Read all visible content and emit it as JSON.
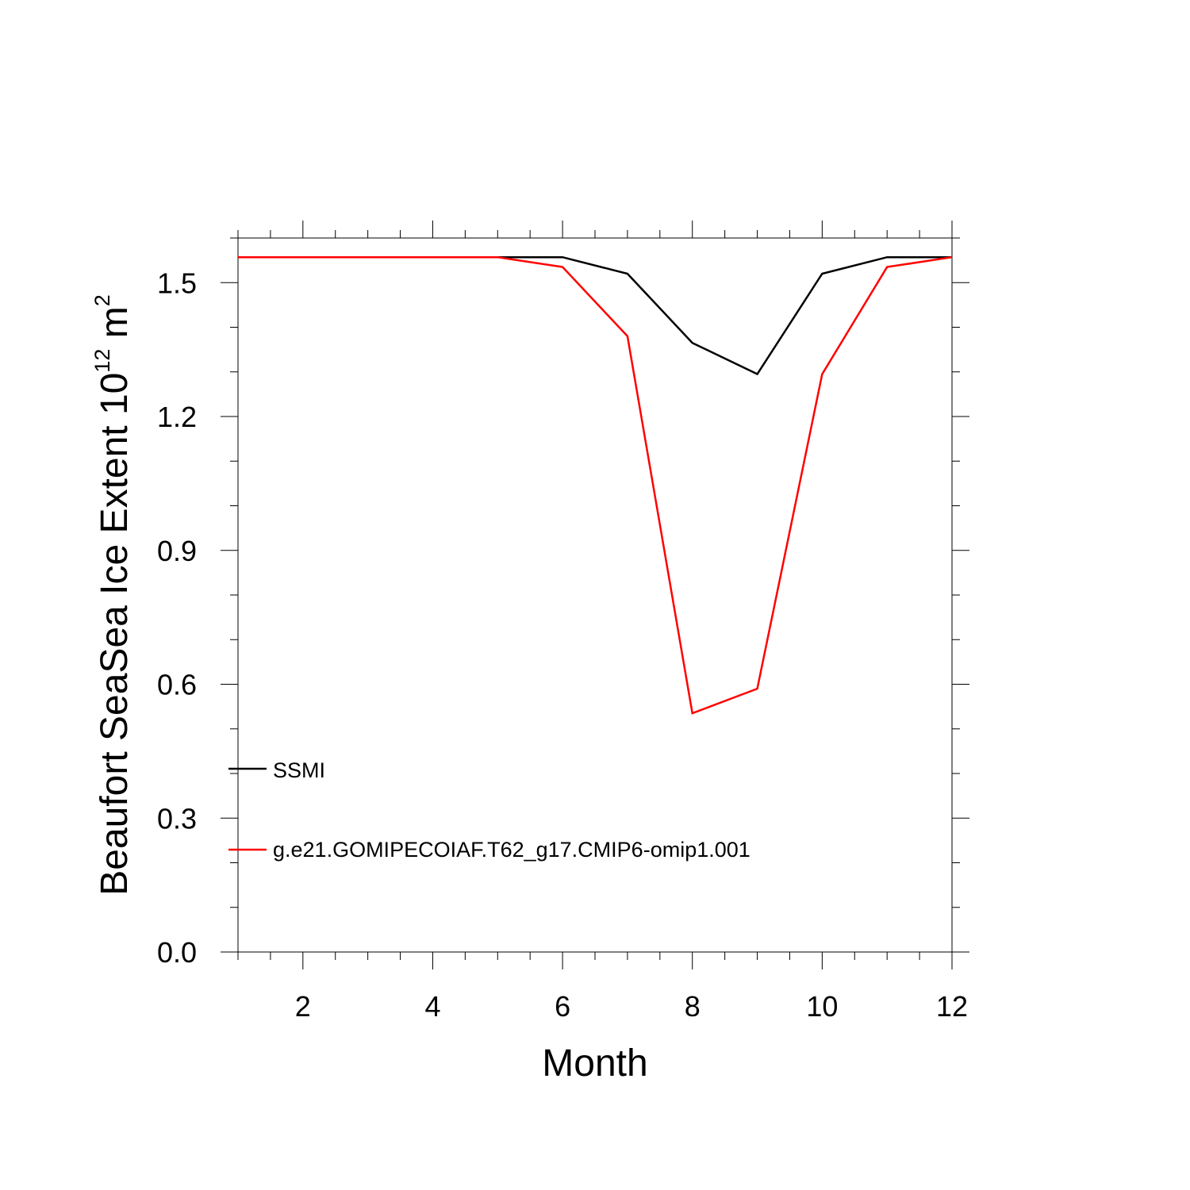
{
  "chart_data": {
    "type": "line",
    "xlabel": "Month",
    "ylabel": {
      "prefix": "Beaufort SeaSea Ice Extent 10",
      "exp1": "12",
      "middle": " m",
      "exp2": "2"
    },
    "xlim": [
      1,
      12
    ],
    "ylim": [
      0,
      1.6
    ],
    "x_ticks": [
      2,
      4,
      6,
      8,
      10,
      12
    ],
    "y_ticks": [
      0.0,
      0.3,
      0.6,
      0.9,
      1.2,
      1.5
    ],
    "x_tick_labels": [
      "2",
      "4",
      "6",
      "8",
      "10",
      "12"
    ],
    "y_tick_labels": [
      "0.0",
      "0.3",
      "0.6",
      "0.9",
      "1.2",
      "1.5"
    ],
    "x_minor_step": 0.5,
    "y_minor_step": 0.1,
    "grid": false,
    "legend_position": "lower-left",
    "x": [
      1,
      2,
      3,
      4,
      5,
      6,
      7,
      8,
      9,
      10,
      11,
      12
    ],
    "series": [
      {
        "name": "SSMI",
        "color": "#000000",
        "values": [
          1.557,
          1.557,
          1.557,
          1.557,
          1.557,
          1.557,
          1.52,
          1.365,
          1.295,
          1.52,
          1.557,
          1.557
        ]
      },
      {
        "name": "g.e21.GOMIPECOIAF.T62_g17.CMIP6-omip1.001",
        "color": "#ff0000",
        "values": [
          1.557,
          1.557,
          1.557,
          1.557,
          1.557,
          1.535,
          1.38,
          0.535,
          0.59,
          1.295,
          1.535,
          1.557
        ]
      }
    ]
  }
}
